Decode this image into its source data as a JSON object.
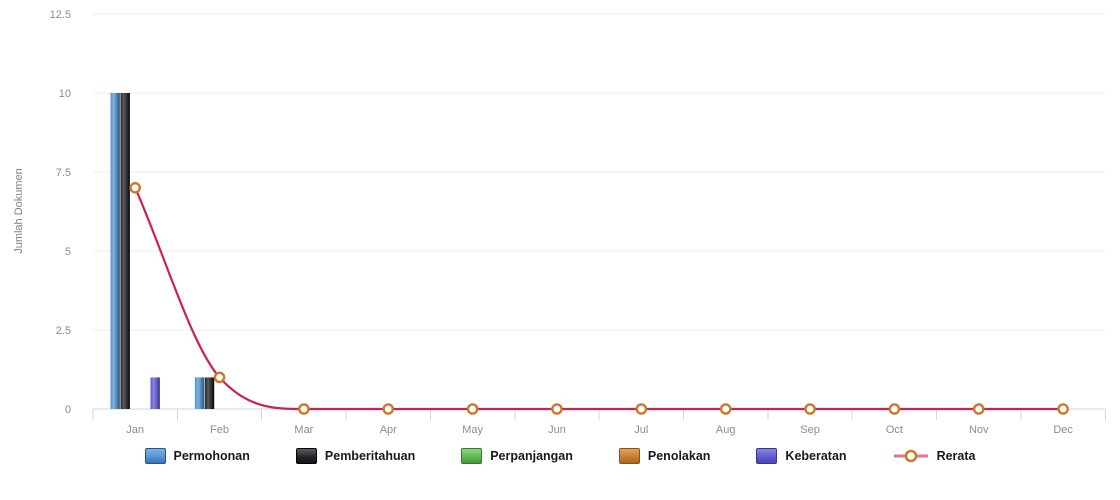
{
  "chart_data": {
    "type": "bar",
    "title": "",
    "xlabel": "",
    "ylabel": "Jumlah Dokumen",
    "categories": [
      "Jan",
      "Feb",
      "Mar",
      "Apr",
      "May",
      "Jun",
      "Jul",
      "Aug",
      "Sep",
      "Oct",
      "Nov",
      "Dec"
    ],
    "ylim": [
      0,
      12.5
    ],
    "yticks": [
      0,
      2.5,
      5,
      7.5,
      10,
      12.5
    ],
    "grid": true,
    "legend_position": "bottom",
    "series": [
      {
        "name": "Permohonan",
        "type": "bar",
        "values": [
          10,
          1,
          0,
          0,
          0,
          0,
          0,
          0,
          0,
          0,
          0,
          0
        ],
        "color": "#4e94d4",
        "color_light": "#7fb2e0",
        "color_dark": "#27567f"
      },
      {
        "name": "Pemberitahuan",
        "type": "bar",
        "values": [
          10,
          1,
          0,
          0,
          0,
          0,
          0,
          0,
          0,
          0,
          0,
          0
        ],
        "color": "#232327",
        "color_light": "#5a5a5e",
        "color_dark": "#050506"
      },
      {
        "name": "Perpanjangan",
        "type": "bar",
        "values": [
          0,
          0,
          0,
          0,
          0,
          0,
          0,
          0,
          0,
          0,
          0,
          0
        ],
        "color": "#5cb64e",
        "color_light": "#8ed47f",
        "color_dark": "#357730"
      },
      {
        "name": "Penolakan",
        "type": "bar",
        "values": [
          0,
          0,
          0,
          0,
          0,
          0,
          0,
          0,
          0,
          0,
          0,
          0
        ],
        "color": "#c97b2d",
        "color_light": "#e0a25f",
        "color_dark": "#8a521c"
      },
      {
        "name": "Keberatan",
        "type": "bar",
        "values": [
          1,
          0,
          0,
          0,
          0,
          0,
          0,
          0,
          0,
          0,
          0,
          0
        ],
        "color": "#5d58cb",
        "color_light": "#8b86e0",
        "color_dark": "#37338f"
      },
      {
        "name": "Rerata",
        "type": "line",
        "values": [
          7,
          1,
          0,
          0,
          0,
          0,
          0,
          0,
          0,
          0,
          0,
          0
        ],
        "line_color": "#cc1f5b",
        "marker_fill": "#ffffff",
        "marker_stroke": "#c87a2e"
      }
    ],
    "colors": {
      "grid": "#ededed",
      "axis": "#cdd7e1",
      "tick_label": "#8c8c8c",
      "axis_title": "#808080",
      "legend_label": "#1a1a1a",
      "background": "#ffffff"
    }
  }
}
